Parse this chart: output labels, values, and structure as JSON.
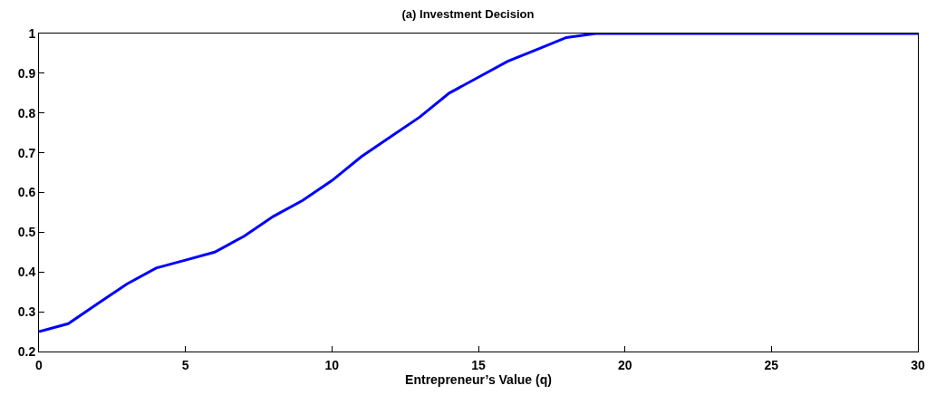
{
  "chart_data": {
    "type": "line",
    "title": "(a) Investment Decision",
    "xlabel": "Entrepreneur’s Value (q)",
    "x": [
      0,
      1,
      2,
      3,
      4,
      5,
      6,
      7,
      8,
      9,
      10,
      11,
      12,
      13,
      14,
      15,
      16,
      17,
      18,
      19,
      20,
      21,
      22,
      23,
      24,
      25,
      26,
      27,
      28,
      29,
      30
    ],
    "series": [
      {
        "color": "#0000ff",
        "values": [
          0.25,
          0.27,
          0.32,
          0.37,
          0.41,
          0.43,
          0.45,
          0.49,
          0.54,
          0.58,
          0.63,
          0.69,
          0.74,
          0.79,
          0.85,
          0.89,
          0.93,
          0.96,
          0.99,
          1,
          1,
          1,
          1,
          1,
          1,
          1,
          1,
          1,
          1,
          1,
          1
        ]
      }
    ],
    "xlim": [
      0,
      30
    ],
    "xticks": [
      0,
      5,
      10,
      15,
      20,
      25,
      30
    ],
    "ylim": [
      0.2,
      1
    ],
    "yticks": [
      0.2,
      0.3,
      0.4,
      0.5,
      0.6,
      0.7,
      0.8,
      0.9,
      1
    ],
    "line_style": "solid",
    "marker": "none"
  }
}
